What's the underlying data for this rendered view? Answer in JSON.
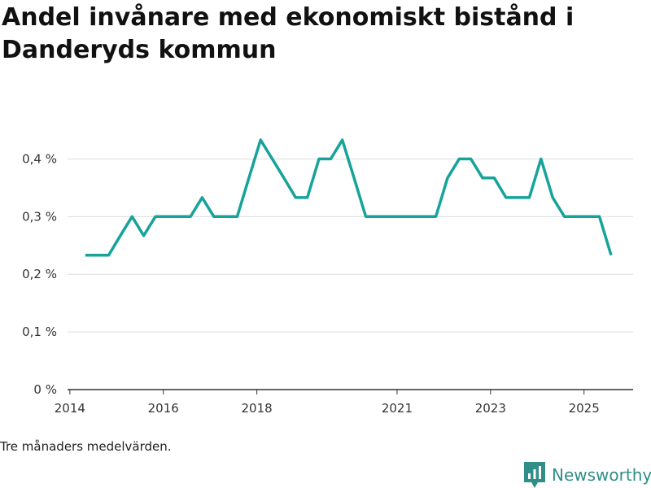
{
  "chart_data": {
    "type": "line",
    "title": "Andel invånare med ekonomiskt bistånd i Danderyds kommun",
    "note": "Tre månaders medelvärden.",
    "xlabel": "",
    "ylabel": "",
    "xlim": [
      2013.95,
      2026.05
    ],
    "ylim": [
      0,
      0.45
    ],
    "x_ticks": [
      2014,
      2016,
      2018,
      2021,
      2023,
      2025
    ],
    "x_tick_labels": [
      "2014",
      "2016",
      "2018",
      "2021",
      "2023",
      "2025"
    ],
    "y_ticks": [
      0,
      0.1,
      0.2,
      0.3,
      0.4
    ],
    "y_tick_labels": [
      "0 %",
      "0,1 %",
      "0,2 %",
      "0,3 %",
      "0,4 %"
    ],
    "grid": true,
    "series": [
      {
        "name": "Andel invånare med ekonomiskt bistånd",
        "color": "#16a39a",
        "x": [
          2014.33,
          2014.58,
          2014.83,
          2015.08,
          2015.33,
          2015.58,
          2015.83,
          2016.08,
          2016.33,
          2016.58,
          2016.83,
          2017.08,
          2017.33,
          2017.58,
          2017.83,
          2018.08,
          2018.33,
          2018.58,
          2018.83,
          2019.08,
          2019.33,
          2019.58,
          2019.83,
          2020.08,
          2020.33,
          2020.58,
          2020.83,
          2021.08,
          2021.33,
          2021.58,
          2021.83,
          2022.08,
          2022.33,
          2022.58,
          2022.83,
          2023.08,
          2023.33,
          2023.58,
          2023.83,
          2024.08,
          2024.33,
          2024.58,
          2024.83,
          2025.08,
          2025.33,
          2025.58
        ],
        "values": [
          0.233,
          0.233,
          0.233,
          0.267,
          0.3,
          0.267,
          0.3,
          0.3,
          0.3,
          0.3,
          0.333,
          0.3,
          0.3,
          0.3,
          0.367,
          0.433,
          0.4,
          0.367,
          0.333,
          0.333,
          0.4,
          0.4,
          0.433,
          0.367,
          0.3,
          0.3,
          0.3,
          0.3,
          0.3,
          0.3,
          0.3,
          0.367,
          0.4,
          0.4,
          0.367,
          0.367,
          0.333,
          0.333,
          0.333,
          0.4,
          0.333,
          0.3,
          0.3,
          0.3,
          0.3,
          0.233
        ]
      }
    ]
  },
  "branding": {
    "name": "Newsworthy",
    "color": "#2f8f88"
  }
}
